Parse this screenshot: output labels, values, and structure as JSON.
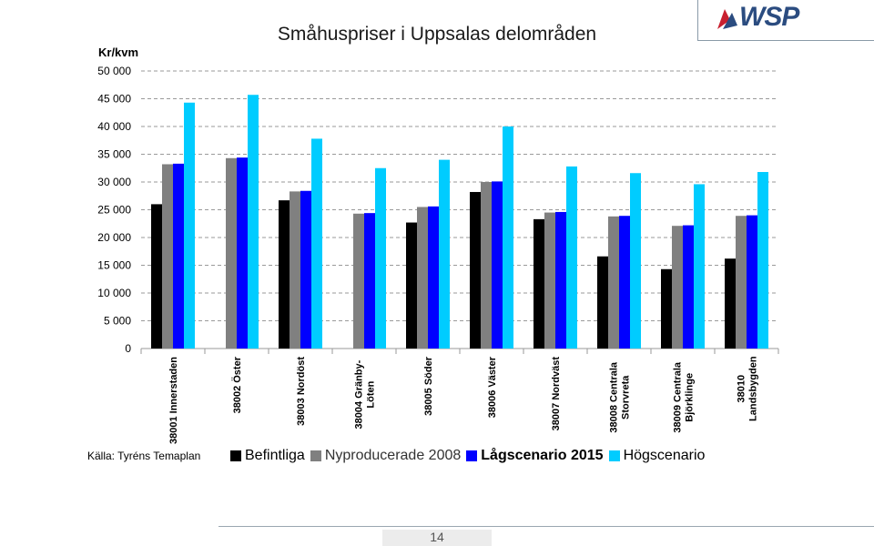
{
  "page": {
    "title": "Småhuspriser i Uppsalas delområden",
    "source": "Källa: Tyréns Temaplan",
    "page_number": "14",
    "logo": "WSP"
  },
  "chart_data": {
    "type": "bar",
    "title": "Småhuspriser i Uppsalas delområden",
    "ylabel": "Kr/kvm",
    "xlabel": "",
    "ylim": [
      0,
      50000
    ],
    "yticks": [
      "0",
      "5 000",
      "10 000",
      "15 000",
      "20 000",
      "25 000",
      "30 000",
      "35 000",
      "40 000",
      "45 000",
      "50 000"
    ],
    "grid": true,
    "legend_position": "bottom",
    "categories": [
      "38001 Innerstaden",
      "38002 Öster",
      "38003 Nordöst",
      "38004 Gränby-\nLöten",
      "38005 Söder",
      "38006 Väster",
      "38007 Nordväst",
      "38008 Centrala\nStorvreta",
      "38009 Centrala\nBjörklinge",
      "38010\nLandsbygden"
    ],
    "series": [
      {
        "name": "Befintliga",
        "color": "#000000",
        "values": [
          26000,
          null,
          26700,
          null,
          22700,
          28200,
          23300,
          16600,
          14300,
          16200
        ]
      },
      {
        "name": "Nyproducerade 2008",
        "color": "#808080",
        "values": [
          33200,
          34300,
          28300,
          24300,
          25500,
          30000,
          24500,
          23800,
          22100,
          23900
        ]
      },
      {
        "name": "Lågscenario 2015",
        "color": "#0000ff",
        "values": [
          33300,
          34400,
          28400,
          24400,
          25600,
          30100,
          24600,
          23900,
          22200,
          24000
        ]
      },
      {
        "name": "Högscenario",
        "color": "#00ccff",
        "values": [
          44300,
          45700,
          37800,
          32500,
          34000,
          40000,
          32800,
          31600,
          29600,
          31800
        ]
      }
    ]
  }
}
